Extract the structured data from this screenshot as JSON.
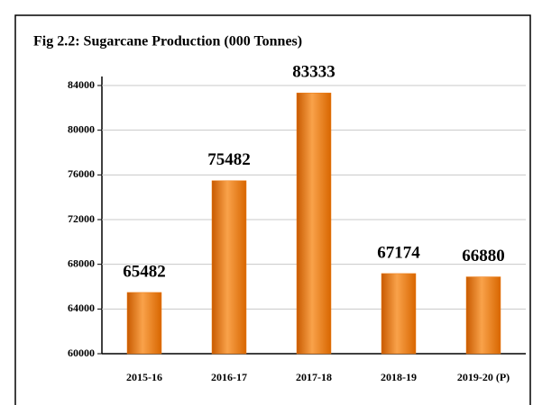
{
  "chart_data": {
    "type": "bar",
    "title": "Fig 2.2: Sugarcane Production (000 Tonnes)",
    "categories": [
      "2015-16",
      "2016-17",
      "2017-18",
      "2018-19",
      "2019-20 (P)"
    ],
    "values": [
      65482,
      75482,
      83333,
      67174,
      66880
    ],
    "color": "#ee7a12",
    "ylim": [
      60000,
      84000
    ],
    "yticks": [
      60000,
      64000,
      68000,
      72000,
      76000,
      80000,
      84000
    ],
    "grid": true
  }
}
